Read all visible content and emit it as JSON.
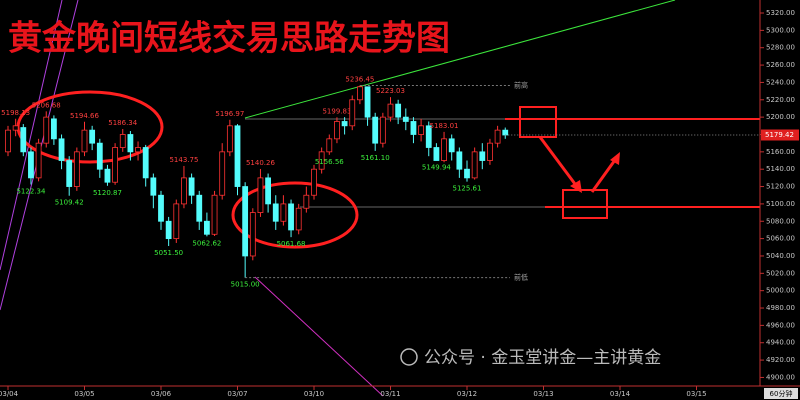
{
  "chart_data": {
    "type": "candlestick",
    "title": "黄金晚间短线交易思路走势图",
    "categories": [
      "03/04",
      "03/05",
      "03/06",
      "03/07",
      "03/10",
      "03/11",
      "03/12",
      "03/13",
      "03/14",
      "03/15"
    ],
    "timeframe": "60分钟",
    "watermark": "公众号 · 金玉堂讲金—主讲黄金",
    "annotations": {
      "prev_high": "前高",
      "prev_low": "前低"
    },
    "up_color": "#ff3232",
    "down_color": "#54fcfc",
    "open": [
      5160,
      5185,
      5188,
      5160,
      5130,
      5170,
      5198,
      5175,
      5150,
      5120,
      5160,
      5185,
      5170,
      5140,
      5125,
      5165,
      5180,
      5160,
      5165,
      5130,
      5110,
      5080,
      5060,
      5100,
      5130,
      5110,
      5080,
      5065,
      5110,
      5160,
      5190,
      5120,
      5040,
      5090,
      5130,
      5100,
      5080,
      5100,
      5070,
      5095,
      5110,
      5140,
      5160,
      5175,
      5195,
      5190,
      5220,
      5235,
      5200,
      5170,
      5200,
      5215,
      5200,
      5195,
      5180,
      5190,
      5165,
      5150,
      5175,
      5160,
      5140,
      5130,
      5160,
      5150,
      5170,
      5185
    ],
    "high": [
      5190,
      5198.13,
      5192,
      5165,
      5175,
      5206.68,
      5202,
      5180,
      5155,
      5165,
      5194.66,
      5190,
      5175,
      5145,
      5170,
      5186.34,
      5184,
      5172,
      5168,
      5135,
      5115,
      5085,
      5105,
      5143.75,
      5135,
      5115,
      5090,
      5115,
      5170,
      5196.97,
      5192,
      5125,
      5095,
      5140.26,
      5135,
      5110,
      5110,
      5105,
      5100,
      5120,
      5145,
      5165,
      5180,
      5199.83,
      5200,
      5225,
      5236.45,
      5232,
      5205,
      5205,
      5223.03,
      5220,
      5210,
      5200,
      5198,
      5195,
      5170,
      5183.01,
      5180,
      5165,
      5150,
      5165,
      5170,
      5175,
      5190,
      5188
    ],
    "low": [
      5155,
      5178,
      5155,
      5122.34,
      5126,
      5165,
      5168,
      5140,
      5109.42,
      5115,
      5155,
      5162,
      5130,
      5120.87,
      5122,
      5160,
      5150,
      5150,
      5120,
      5095,
      5070,
      5051.5,
      5055,
      5095,
      5100,
      5070,
      5062.62,
      5063,
      5105,
      5155,
      5110,
      5015,
      5035,
      5085,
      5090,
      5070,
      5075,
      5061.68,
      5065,
      5090,
      5105,
      5135,
      5156.56,
      5170,
      5180,
      5185,
      5215,
      5190,
      5161.1,
      5165,
      5195,
      5192,
      5185,
      5170,
      5172,
      5155,
      5149.94,
      5148,
      5150,
      5130,
      5125.61,
      5128,
      5140,
      5145,
      5165,
      5175
    ],
    "close": [
      5185,
      5190,
      5160,
      5130,
      5170,
      5200,
      5175,
      5150,
      5120,
      5160,
      5185,
      5170,
      5140,
      5125,
      5165,
      5180,
      5160,
      5165,
      5130,
      5110,
      5080,
      5060,
      5100,
      5130,
      5110,
      5080,
      5065,
      5110,
      5160,
      5190,
      5120,
      5040,
      5090,
      5130,
      5100,
      5080,
      5100,
      5070,
      5095,
      5110,
      5140,
      5160,
      5175,
      5195,
      5190,
      5220,
      5235,
      5200,
      5170,
      5200,
      5215,
      5200,
      5195,
      5180,
      5190,
      5165,
      5150,
      5175,
      5160,
      5140,
      5130,
      5160,
      5150,
      5170,
      5185,
      5179.42
    ],
    "high_labels": [
      null,
      "5198.13",
      null,
      null,
      null,
      "5206.68",
      null,
      null,
      null,
      null,
      "5194.66",
      null,
      null,
      null,
      null,
      "5186.34",
      null,
      null,
      null,
      null,
      null,
      null,
      null,
      "5143.75",
      null,
      null,
      null,
      null,
      null,
      "5196.97",
      null,
      null,
      null,
      "5140.26",
      null,
      null,
      null,
      null,
      null,
      null,
      null,
      null,
      null,
      "5199.83",
      null,
      null,
      "5236.45",
      null,
      null,
      null,
      "5223.03",
      null,
      null,
      null,
      null,
      null,
      null,
      "5183.01",
      null,
      null,
      null,
      null,
      null,
      null,
      null,
      null
    ],
    "low_labels": [
      null,
      null,
      null,
      "5122.34",
      null,
      null,
      null,
      null,
      "5109.42",
      null,
      null,
      null,
      null,
      "5120.87",
      null,
      null,
      null,
      null,
      null,
      null,
      null,
      "5051.50",
      null,
      null,
      null,
      null,
      "5062.62",
      null,
      null,
      null,
      null,
      "5015.00",
      null,
      null,
      null,
      null,
      null,
      "5061.68",
      null,
      null,
      null,
      null,
      "5156.56",
      null,
      null,
      null,
      null,
      null,
      "5161.10",
      null,
      null,
      null,
      null,
      null,
      null,
      null,
      "5149.94",
      null,
      null,
      null,
      "5125.61",
      null,
      null,
      null,
      null,
      null
    ],
    "ylim": [
      4874,
      5335
    ],
    "yticks": [
      {
        "value": 4900,
        "label": "4900.00"
      },
      {
        "value": 4920,
        "label": "4920.00"
      },
      {
        "value": 4940,
        "label": "4940.00"
      },
      {
        "value": 4960,
        "label": "4960.00"
      },
      {
        "value": 4980,
        "label": "4980.00"
      },
      {
        "value": 5000,
        "label": "5000.00"
      },
      {
        "value": 5020,
        "label": "5020.00"
      },
      {
        "value": 5040,
        "label": "5040.00"
      },
      {
        "value": 5060,
        "label": "5060.00"
      },
      {
        "value": 5080,
        "label": "5080.00"
      },
      {
        "value": 5100,
        "label": "5100.00"
      },
      {
        "value": 5120,
        "label": "5120.00"
      },
      {
        "value": 5140,
        "label": "5140.00"
      },
      {
        "value": 5160,
        "label": "5160.00"
      },
      {
        "value": 5180,
        "label": "5180.00"
      },
      {
        "value": 5200,
        "label": "5200.00"
      },
      {
        "value": 5220,
        "label": "5220.00"
      },
      {
        "value": 5240,
        "label": "5240.00"
      },
      {
        "value": 5260,
        "label": "5260.00"
      },
      {
        "value": 5280,
        "label": "5280.00"
      },
      {
        "value": 5300,
        "label": "5300.00"
      },
      {
        "value": 5320,
        "label": "5320.00"
      }
    ]
  }
}
